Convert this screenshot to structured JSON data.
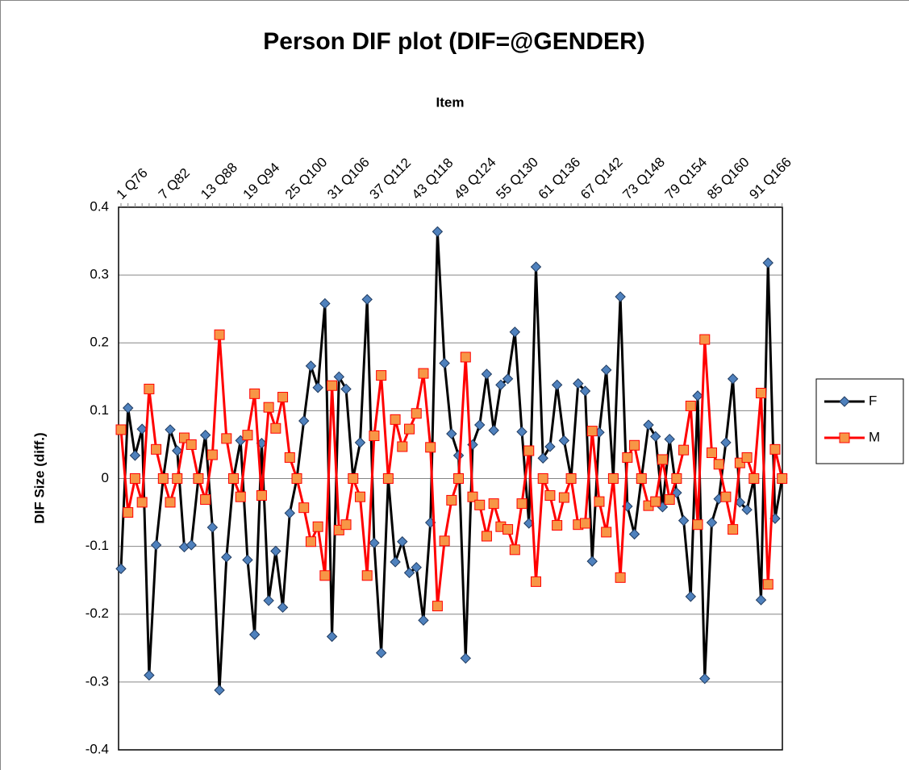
{
  "chart_data": {
    "type": "line",
    "title": "Person DIF plot (DIF=@GENDER)",
    "x_label": "Item",
    "y_label": "DIF Size (diff.)",
    "categories": [
      "1 Q76",
      null,
      null,
      null,
      null,
      null,
      "7 Q82",
      null,
      null,
      null,
      null,
      null,
      "13 Q88",
      null,
      null,
      null,
      null,
      null,
      "19 Q94",
      null,
      null,
      null,
      null,
      null,
      "25 Q100",
      null,
      null,
      null,
      null,
      null,
      "31 Q106",
      null,
      null,
      null,
      null,
      null,
      "37 Q112",
      null,
      null,
      null,
      null,
      null,
      "43 Q118",
      null,
      null,
      null,
      null,
      null,
      "49 Q124",
      null,
      null,
      null,
      null,
      null,
      "55 Q130",
      null,
      null,
      null,
      null,
      null,
      "61 Q136",
      null,
      null,
      null,
      null,
      null,
      "67 Q142",
      null,
      null,
      null,
      null,
      null,
      "73 Q148",
      null,
      null,
      null,
      null,
      null,
      "79 Q154",
      null,
      null,
      null,
      null,
      null,
      "85 Q160",
      null,
      null,
      null,
      null,
      null,
      "91 Q166",
      null,
      null,
      null,
      null
    ],
    "series": [
      {
        "name": "F",
        "color": "#000000",
        "marker_color": "#4f81bd",
        "marker": "diamond",
        "values": [
          -0.133,
          0.104,
          0.034,
          0.073,
          -0.29,
          -0.098,
          0,
          0.072,
          0.041,
          -0.101,
          -0.098,
          0,
          0.064,
          -0.072,
          -0.312,
          -0.116,
          0,
          0.056,
          -0.12,
          -0.23,
          0.052,
          -0.18,
          -0.107,
          -0.19,
          -0.051,
          0,
          0.085,
          0.166,
          0.134,
          0.258,
          -0.233,
          0.15,
          0.132,
          0,
          0.053,
          0.264,
          -0.095,
          -0.257,
          0,
          -0.123,
          -0.093,
          -0.139,
          -0.131,
          -0.209,
          -0.065,
          0.364,
          0.17,
          0.066,
          0.034,
          -0.265,
          0.05,
          0.079,
          0.154,
          0.071,
          0.138,
          0.147,
          0.216,
          0.069,
          -0.066,
          0.312,
          0.03,
          0.047,
          0.138,
          0.056,
          0,
          0.14,
          0.129,
          -0.122,
          0.068,
          0.16,
          0,
          0.268,
          -0.041,
          -0.082,
          0,
          0.079,
          0.062,
          -0.042,
          0.058,
          -0.021,
          -0.062,
          -0.174,
          0.122,
          -0.295,
          -0.065,
          -0.03,
          0.053,
          0.147,
          -0.035,
          -0.046,
          0,
          -0.179,
          0.318,
          -0.059,
          0
        ]
      },
      {
        "name": "M",
        "color": "#ff0000",
        "marker_color": "#f79646",
        "marker": "square",
        "values": [
          0.072,
          -0.05,
          0,
          -0.035,
          0.132,
          0.043,
          0,
          -0.035,
          0,
          0.06,
          0.05,
          0,
          -0.031,
          0.035,
          0.212,
          0.059,
          0,
          -0.027,
          0.064,
          0.125,
          -0.025,
          0.105,
          0.074,
          0.12,
          0.031,
          0,
          -0.043,
          -0.093,
          -0.071,
          -0.143,
          0.137,
          -0.076,
          -0.068,
          0,
          -0.027,
          -0.143,
          0.063,
          0.152,
          0,
          0.087,
          0.047,
          0.073,
          0.096,
          0.155,
          0.046,
          -0.188,
          -0.092,
          -0.032,
          0,
          0.179,
          -0.027,
          -0.039,
          -0.085,
          -0.037,
          -0.071,
          -0.075,
          -0.105,
          -0.037,
          0.041,
          -0.152,
          0,
          -0.025,
          -0.069,
          -0.028,
          0,
          -0.068,
          -0.066,
          0.07,
          -0.034,
          -0.079,
          0,
          -0.146,
          0.031,
          0.049,
          0,
          -0.04,
          -0.034,
          0.028,
          -0.031,
          0,
          0.042,
          0.107,
          -0.068,
          0.205,
          0.038,
          0.021,
          -0.027,
          -0.075,
          0.023,
          0.031,
          0,
          0.126,
          -0.156,
          0.043,
          0
        ]
      }
    ],
    "ylim": [
      -0.4,
      0.4
    ],
    "yticks": [
      -0.4,
      -0.3,
      -0.2,
      -0.1,
      0,
      0.1,
      0.2,
      0.3,
      0.4
    ],
    "grid": true,
    "legend": "right"
  }
}
